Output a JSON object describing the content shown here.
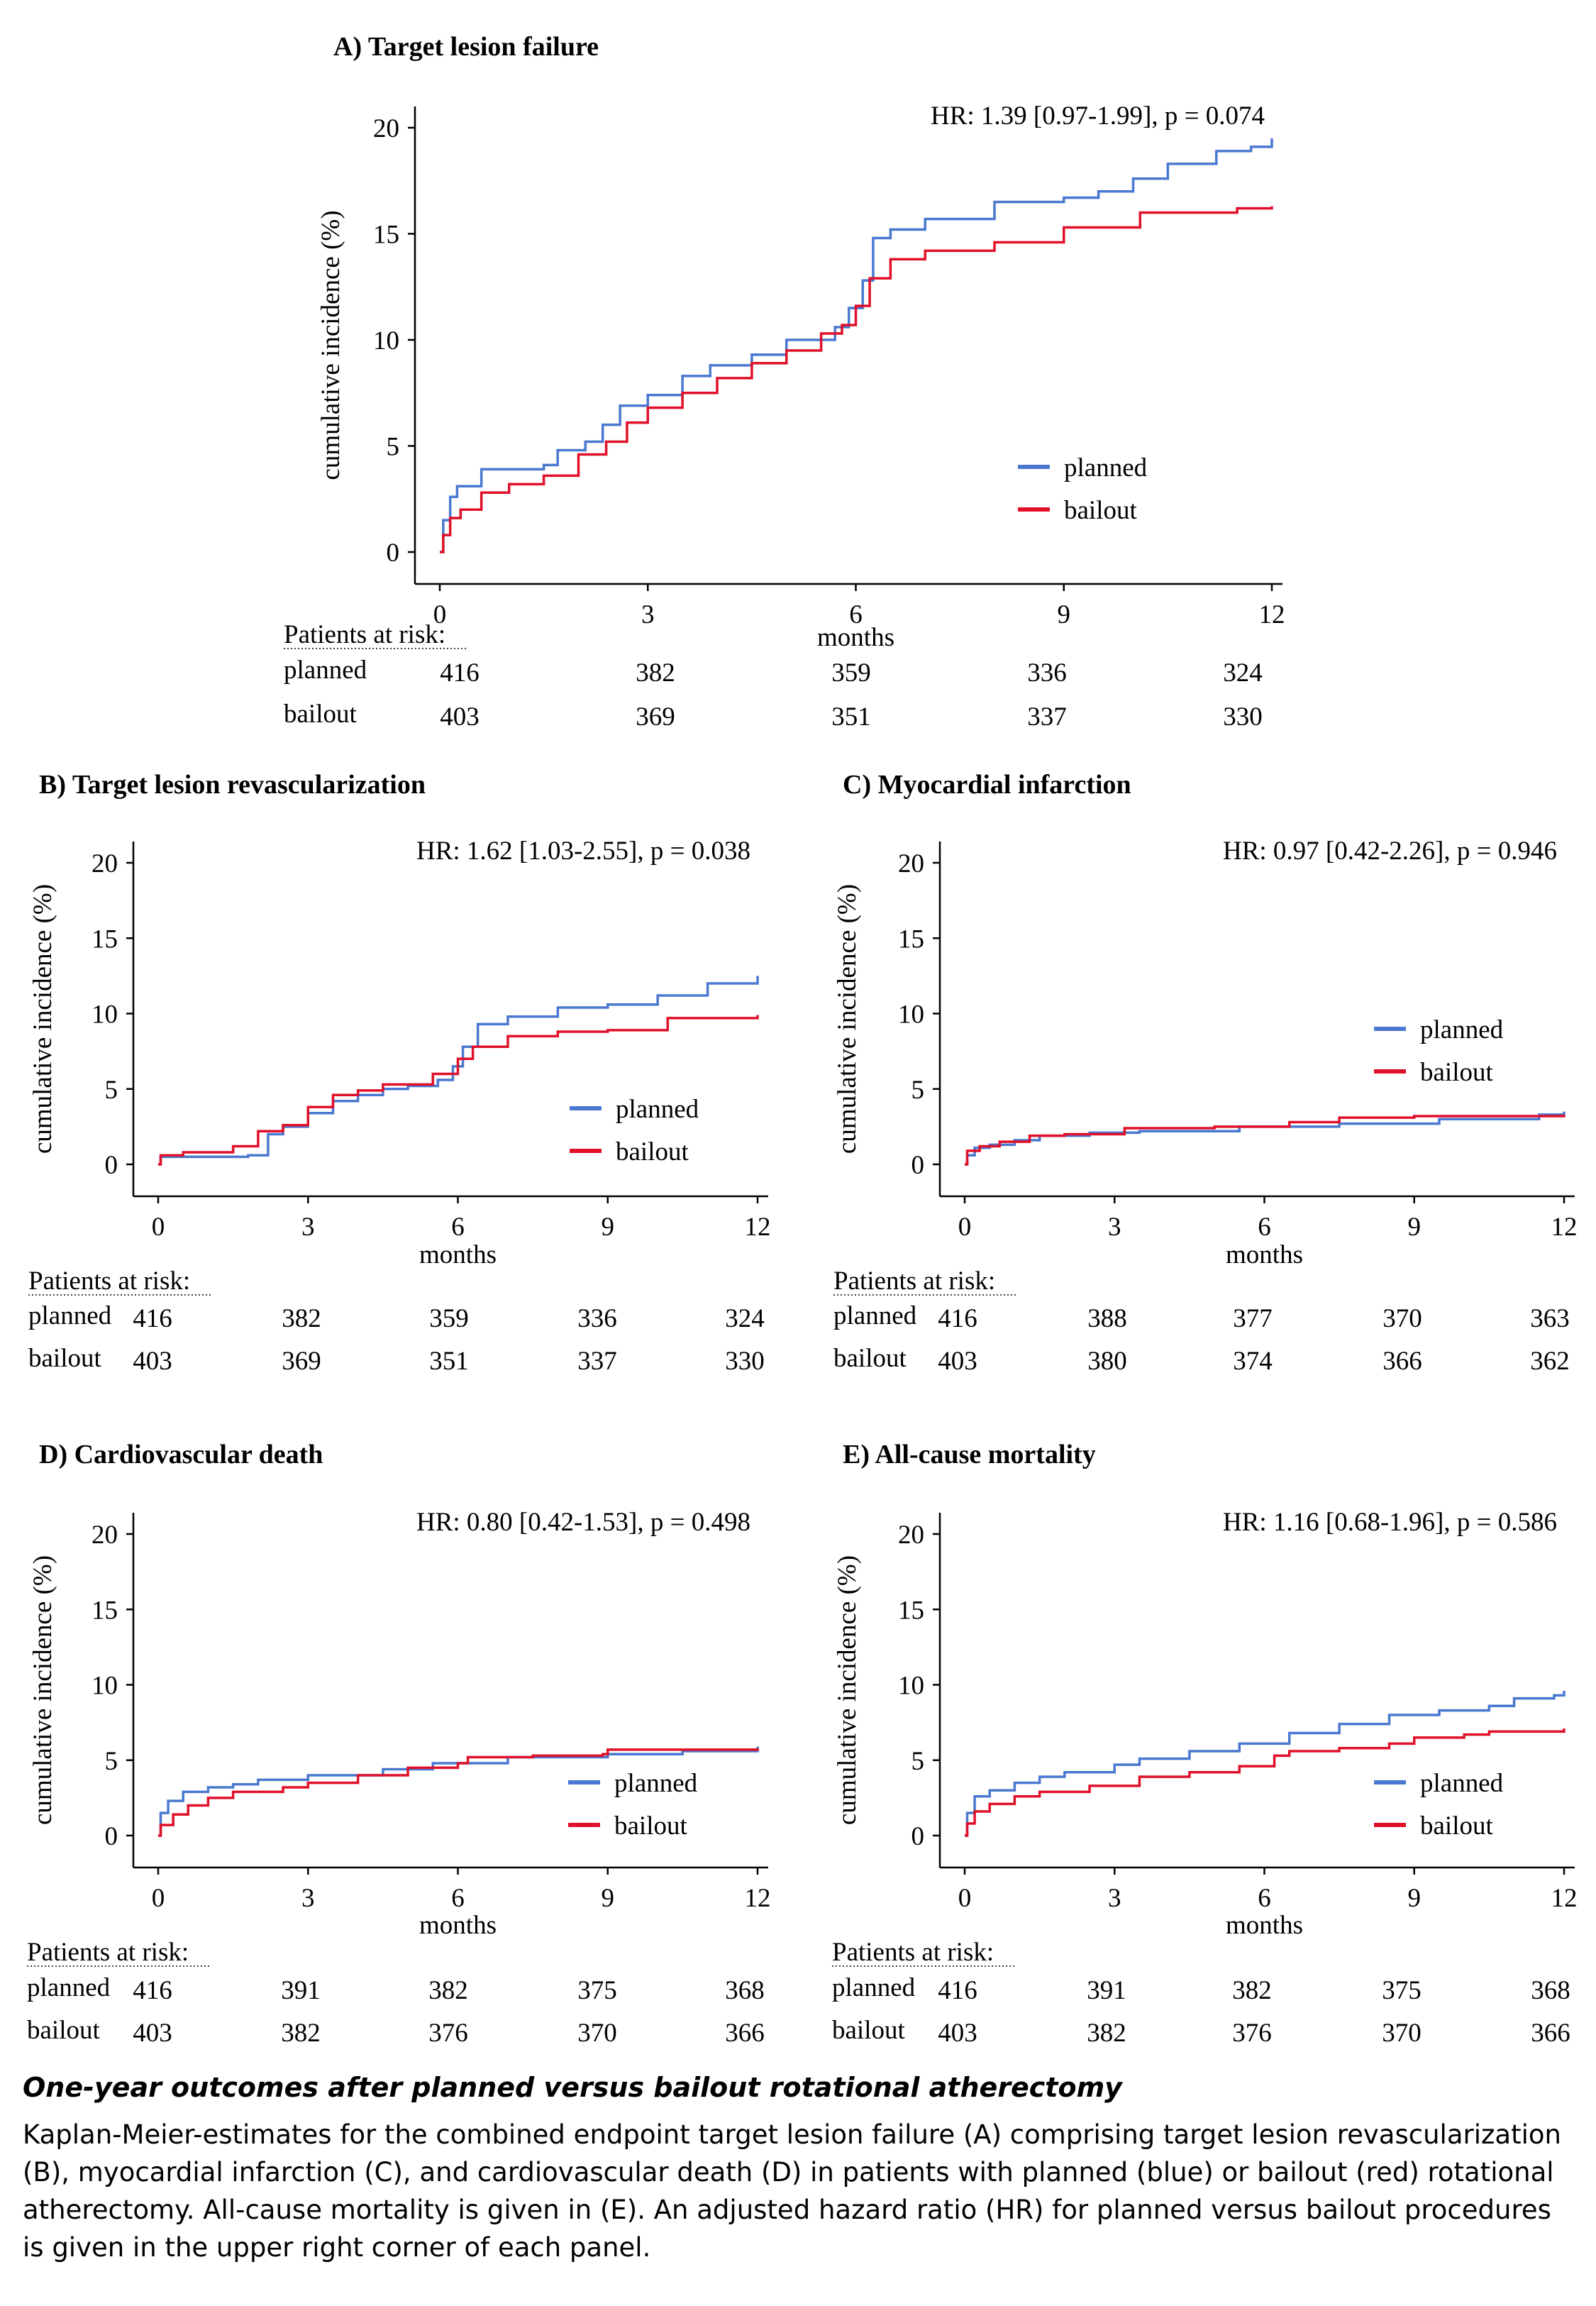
{
  "colors": {
    "planned": "#4a78d0",
    "bailout": "#e0102a",
    "axis": "#000000"
  },
  "risk_header": "Patients at risk:",
  "caption": {
    "title": "One-year outcomes  after planned versus bailout rotational atherectomy",
    "text": "Kaplan-Meier-estimates  for the combined endpoint target lesion failure (A) comprising target lesion revascularization (B), myocardial infarction (C), and cardiovascular death (D) in patients with planned (blue) or bailout (red) rotational atherectomy. All-cause mortality is given in (E). An adjusted hazard ratio (HR) for planned versus bailout procedures is given in the upper right corner of each panel."
  },
  "chart_data": [
    {
      "id": "A",
      "type": "line",
      "title": "A) Target lesion failure",
      "annotation": "HR: 1.39 [0.97-1.99], p = 0.074",
      "xlabel": "months",
      "ylabel": "cumulative incidence (%)",
      "xlim": [
        0,
        12
      ],
      "ylim": [
        0,
        20
      ],
      "xticks": [
        0,
        3,
        6,
        9,
        12
      ],
      "yticks": [
        0,
        5,
        10,
        15,
        20
      ],
      "legend_position": "bottom-right",
      "grid": false,
      "series": [
        {
          "name": "planned",
          "color": "#4a78d0",
          "points": [
            [
              0,
              0
            ],
            [
              0.05,
              1.5
            ],
            [
              0.15,
              2.6
            ],
            [
              0.25,
              3.1
            ],
            [
              0.6,
              3.9
            ],
            [
              1.5,
              4.1
            ],
            [
              1.7,
              4.8
            ],
            [
              2.1,
              5.2
            ],
            [
              2.35,
              6.0
            ],
            [
              2.6,
              6.9
            ],
            [
              3.0,
              7.4
            ],
            [
              3.5,
              8.3
            ],
            [
              3.9,
              8.8
            ],
            [
              4.5,
              9.3
            ],
            [
              5.0,
              10.0
            ],
            [
              5.7,
              10.6
            ],
            [
              5.9,
              11.5
            ],
            [
              6.1,
              12.8
            ],
            [
              6.25,
              14.8
            ],
            [
              6.5,
              15.2
            ],
            [
              7.0,
              15.7
            ],
            [
              8.0,
              16.5
            ],
            [
              9.0,
              16.7
            ],
            [
              9.5,
              17.0
            ],
            [
              10.0,
              17.6
            ],
            [
              10.5,
              18.3
            ],
            [
              11.2,
              18.9
            ],
            [
              11.7,
              19.1
            ],
            [
              12.0,
              19.5
            ]
          ]
        },
        {
          "name": "bailout",
          "color": "#e0102a",
          "points": [
            [
              0,
              0
            ],
            [
              0.05,
              0.8
            ],
            [
              0.15,
              1.6
            ],
            [
              0.3,
              2.0
            ],
            [
              0.6,
              2.8
            ],
            [
              1.0,
              3.2
            ],
            [
              1.5,
              3.6
            ],
            [
              2.0,
              4.6
            ],
            [
              2.4,
              5.2
            ],
            [
              2.7,
              6.1
            ],
            [
              3.0,
              6.8
            ],
            [
              3.5,
              7.5
            ],
            [
              4.0,
              8.2
            ],
            [
              4.5,
              8.9
            ],
            [
              5.0,
              9.5
            ],
            [
              5.5,
              10.3
            ],
            [
              5.8,
              10.7
            ],
            [
              6.0,
              11.6
            ],
            [
              6.2,
              12.9
            ],
            [
              6.5,
              13.8
            ],
            [
              7.0,
              14.2
            ],
            [
              8.0,
              14.6
            ],
            [
              9.0,
              15.3
            ],
            [
              10.0,
              15.3
            ],
            [
              10.1,
              16.0
            ],
            [
              11.5,
              16.2
            ],
            [
              12.0,
              16.3
            ]
          ]
        }
      ],
      "at_risk": {
        "planned": [
          416,
          382,
          359,
          336,
          324
        ],
        "bailout": [
          403,
          369,
          351,
          337,
          330
        ]
      }
    },
    {
      "id": "B",
      "type": "line",
      "title": "B) Target lesion revascularization",
      "annotation": "HR: 1.62 [1.03-2.55], p = 0.038",
      "xlabel": "months",
      "ylabel": "cumulative incidence (%)",
      "xlim": [
        0,
        12
      ],
      "ylim": [
        0,
        20
      ],
      "xticks": [
        0,
        3,
        6,
        9,
        12
      ],
      "yticks": [
        0,
        5,
        10,
        15,
        20
      ],
      "legend_position": "bottom-right",
      "grid": false,
      "series": [
        {
          "name": "planned",
          "color": "#4a78d0",
          "points": [
            [
              0,
              0
            ],
            [
              0.05,
              0.5
            ],
            [
              1.8,
              0.6
            ],
            [
              2.2,
              2.0
            ],
            [
              2.5,
              2.5
            ],
            [
              3.0,
              3.4
            ],
            [
              3.5,
              4.2
            ],
            [
              4.0,
              4.6
            ],
            [
              4.5,
              5.0
            ],
            [
              5.0,
              5.2
            ],
            [
              5.6,
              5.6
            ],
            [
              5.9,
              6.5
            ],
            [
              6.1,
              7.8
            ],
            [
              6.4,
              9.3
            ],
            [
              7.0,
              9.8
            ],
            [
              8.0,
              10.4
            ],
            [
              9.0,
              10.6
            ],
            [
              10.0,
              11.2
            ],
            [
              11.0,
              12.0
            ],
            [
              12.0,
              12.5
            ]
          ]
        },
        {
          "name": "bailout",
          "color": "#e0102a",
          "points": [
            [
              0,
              0
            ],
            [
              0.05,
              0.6
            ],
            [
              0.5,
              0.8
            ],
            [
              1.5,
              1.2
            ],
            [
              2.0,
              2.2
            ],
            [
              2.5,
              2.6
            ],
            [
              3.0,
              3.8
            ],
            [
              3.5,
              4.6
            ],
            [
              4.0,
              4.9
            ],
            [
              4.5,
              5.3
            ],
            [
              5.5,
              6.0
            ],
            [
              6.0,
              7.0
            ],
            [
              6.3,
              7.8
            ],
            [
              7.0,
              8.5
            ],
            [
              8.0,
              8.8
            ],
            [
              9.0,
              8.9
            ],
            [
              10.0,
              8.9
            ],
            [
              10.2,
              9.7
            ],
            [
              12.0,
              9.9
            ]
          ]
        }
      ],
      "at_risk": {
        "planned": [
          416,
          382,
          359,
          336,
          324
        ],
        "bailout": [
          403,
          369,
          351,
          337,
          330
        ]
      }
    },
    {
      "id": "C",
      "type": "line",
      "title": "C) Myocardial infarction",
      "annotation": "HR: 0.97 [0.42-2.26], p = 0.946",
      "xlabel": "months",
      "ylabel": "cumulative incidence (%)",
      "xlim": [
        0,
        12
      ],
      "ylim": [
        0,
        20
      ],
      "xticks": [
        0,
        3,
        6,
        9,
        12
      ],
      "yticks": [
        0,
        5,
        10,
        15,
        20
      ],
      "legend_position": "center-right",
      "grid": false,
      "series": [
        {
          "name": "planned",
          "color": "#4a78d0",
          "points": [
            [
              0,
              0
            ],
            [
              0.05,
              0.6
            ],
            [
              0.2,
              1.1
            ],
            [
              0.5,
              1.3
            ],
            [
              1.0,
              1.6
            ],
            [
              1.5,
              1.9
            ],
            [
              2.5,
              2.1
            ],
            [
              3.5,
              2.2
            ],
            [
              5.5,
              2.5
            ],
            [
              7.5,
              2.7
            ],
            [
              9.5,
              3.0
            ],
            [
              11.5,
              3.3
            ],
            [
              12.0,
              3.5
            ]
          ]
        },
        {
          "name": "bailout",
          "color": "#e0102a",
          "points": [
            [
              0,
              0
            ],
            [
              0.05,
              0.9
            ],
            [
              0.3,
              1.2
            ],
            [
              0.7,
              1.5
            ],
            [
              1.3,
              1.9
            ],
            [
              2.0,
              2.0
            ],
            [
              3.2,
              2.4
            ],
            [
              5.0,
              2.5
            ],
            [
              6.5,
              2.8
            ],
            [
              7.5,
              3.1
            ],
            [
              9.0,
              3.2
            ],
            [
              12.0,
              3.3
            ]
          ]
        }
      ],
      "at_risk": {
        "planned": [
          416,
          388,
          377,
          370,
          363
        ],
        "bailout": [
          403,
          380,
          374,
          366,
          362
        ]
      }
    },
    {
      "id": "D",
      "type": "line",
      "title": "D) Cardiovascular death",
      "annotation": "HR: 0.80 [0.42-1.53], p = 0.498",
      "xlabel": "months",
      "ylabel": "cumulative incidence (%)",
      "xlim": [
        0,
        12
      ],
      "ylim": [
        0,
        20
      ],
      "xticks": [
        0,
        3,
        6,
        9,
        12
      ],
      "yticks": [
        0,
        5,
        10,
        15,
        20
      ],
      "legend_position": "bottom-right",
      "grid": false,
      "series": [
        {
          "name": "planned",
          "color": "#4a78d0",
          "points": [
            [
              0,
              0
            ],
            [
              0.05,
              1.5
            ],
            [
              0.2,
              2.3
            ],
            [
              0.5,
              2.9
            ],
            [
              1.0,
              3.2
            ],
            [
              1.5,
              3.4
            ],
            [
              2.0,
              3.7
            ],
            [
              3.0,
              4.0
            ],
            [
              4.5,
              4.4
            ],
            [
              5.5,
              4.8
            ],
            [
              7.0,
              5.2
            ],
            [
              9.0,
              5.4
            ],
            [
              10.5,
              5.6
            ],
            [
              12.0,
              5.9
            ]
          ]
        },
        {
          "name": "bailout",
          "color": "#e0102a",
          "points": [
            [
              0,
              0
            ],
            [
              0.05,
              0.7
            ],
            [
              0.3,
              1.4
            ],
            [
              0.6,
              2.0
            ],
            [
              1.0,
              2.5
            ],
            [
              1.5,
              2.9
            ],
            [
              2.5,
              3.2
            ],
            [
              3.0,
              3.5
            ],
            [
              4.0,
              4.0
            ],
            [
              5.0,
              4.5
            ],
            [
              6.0,
              4.8
            ],
            [
              6.2,
              5.2
            ],
            [
              7.5,
              5.3
            ],
            [
              8.9,
              5.4
            ],
            [
              9.0,
              5.7
            ],
            [
              12.0,
              5.8
            ]
          ]
        }
      ],
      "at_risk": {
        "planned": [
          416,
          391,
          382,
          375,
          368
        ],
        "bailout": [
          403,
          382,
          376,
          370,
          366
        ]
      }
    },
    {
      "id": "E",
      "type": "line",
      "title": "E) All-cause mortality",
      "annotation": "HR: 1.16 [0.68-1.96], p = 0.586",
      "xlabel": "months",
      "ylabel": "cumulative incidence (%)",
      "xlim": [
        0,
        12
      ],
      "ylim": [
        0,
        20
      ],
      "xticks": [
        0,
        3,
        6,
        9,
        12
      ],
      "yticks": [
        0,
        5,
        10,
        15,
        20
      ],
      "legend_position": "bottom-right",
      "grid": false,
      "series": [
        {
          "name": "planned",
          "color": "#4a78d0",
          "points": [
            [
              0,
              0
            ],
            [
              0.05,
              1.5
            ],
            [
              0.2,
              2.6
            ],
            [
              0.5,
              3.0
            ],
            [
              1.0,
              3.5
            ],
            [
              1.5,
              3.9
            ],
            [
              2.0,
              4.2
            ],
            [
              3.0,
              4.7
            ],
            [
              3.5,
              5.1
            ],
            [
              4.5,
              5.6
            ],
            [
              5.5,
              6.1
            ],
            [
              6.5,
              6.8
            ],
            [
              7.5,
              7.4
            ],
            [
              8.5,
              8.0
            ],
            [
              9.5,
              8.3
            ],
            [
              10.5,
              8.6
            ],
            [
              11.0,
              9.1
            ],
            [
              11.8,
              9.3
            ],
            [
              12.0,
              9.6
            ]
          ]
        },
        {
          "name": "bailout",
          "color": "#e0102a",
          "points": [
            [
              0,
              0
            ],
            [
              0.05,
              0.8
            ],
            [
              0.2,
              1.6
            ],
            [
              0.5,
              2.1
            ],
            [
              1.0,
              2.6
            ],
            [
              1.5,
              2.9
            ],
            [
              2.5,
              3.3
            ],
            [
              3.5,
              3.9
            ],
            [
              4.5,
              4.2
            ],
            [
              5.5,
              4.6
            ],
            [
              6.2,
              5.3
            ],
            [
              6.5,
              5.6
            ],
            [
              7.5,
              5.8
            ],
            [
              8.5,
              6.1
            ],
            [
              9.0,
              6.5
            ],
            [
              10.0,
              6.7
            ],
            [
              10.5,
              6.9
            ],
            [
              12.0,
              7.1
            ]
          ]
        }
      ],
      "at_risk": {
        "planned": [
          416,
          391,
          382,
          375,
          368
        ],
        "bailout": [
          403,
          382,
          376,
          370,
          366
        ]
      }
    }
  ]
}
